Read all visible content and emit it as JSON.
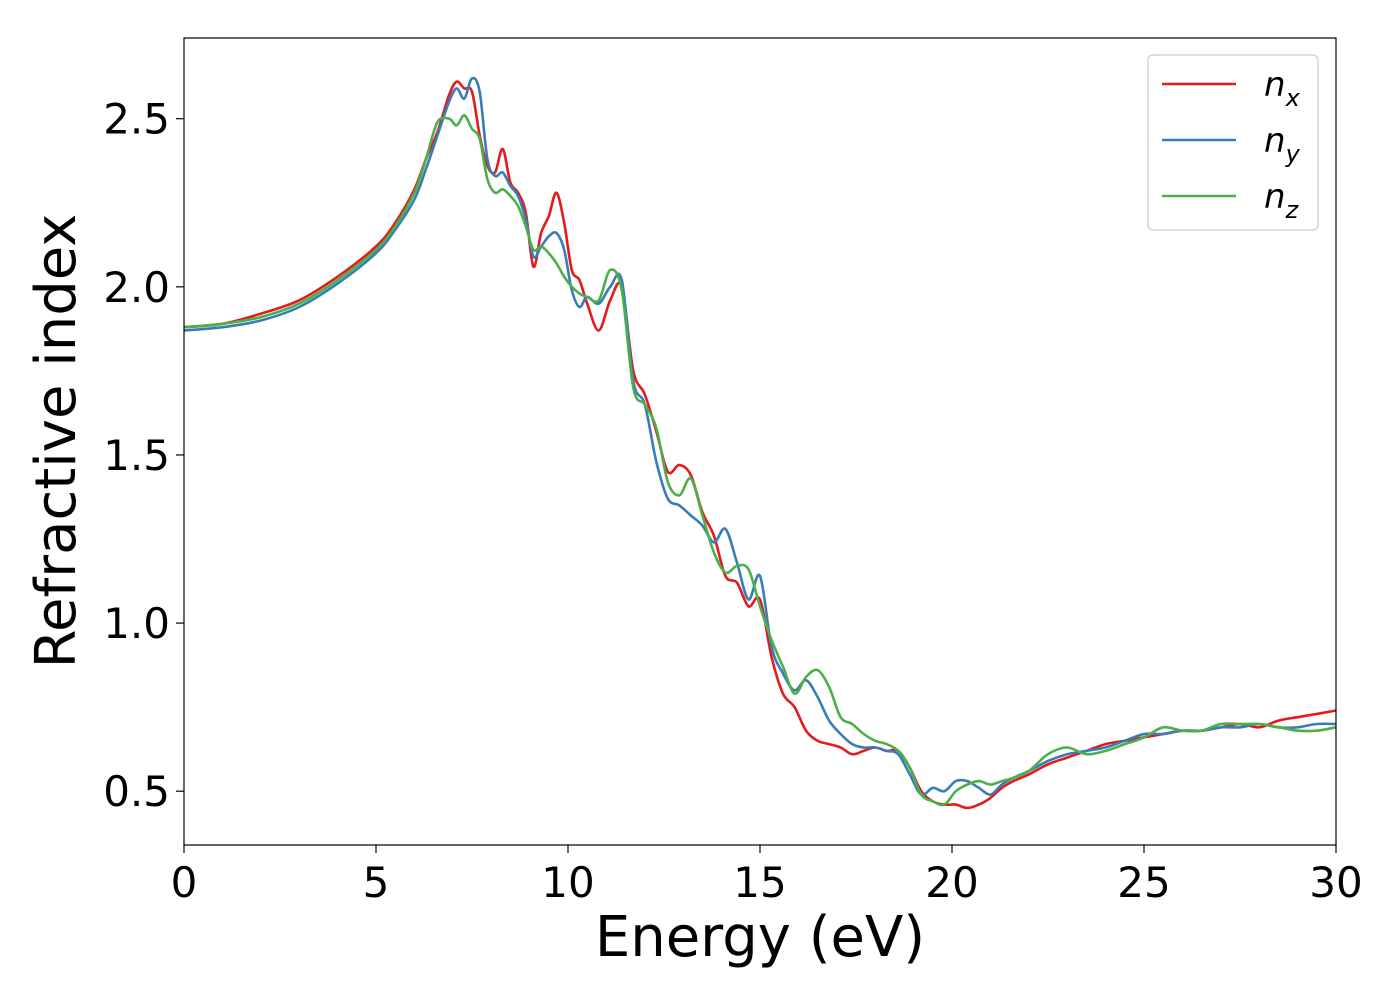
{
  "chart_data": {
    "type": "line",
    "title": "",
    "xlabel": "Energy (eV)",
    "ylabel": "Refractive index",
    "xlim": [
      0,
      30
    ],
    "ylim": [
      0.34,
      2.74
    ],
    "xticks": [
      0,
      5,
      10,
      15,
      20,
      25,
      30
    ],
    "xtick_labels": [
      "0",
      "5",
      "10",
      "15",
      "20",
      "25",
      "30"
    ],
    "yticks": [
      0.5,
      1.0,
      1.5,
      2.0,
      2.5
    ],
    "ytick_labels": [
      "0.5",
      "1.0",
      "1.5",
      "2.0",
      "2.5"
    ],
    "grid": false,
    "legend_position": "top-right",
    "series": [
      {
        "name": "n_x",
        "label_base": "n",
        "label_sub": "x",
        "color": "#e41a1c",
        "x": [
          0,
          1,
          2,
          3,
          4,
          5,
          5.5,
          6,
          6.3,
          6.6,
          6.9,
          7.1,
          7.3,
          7.5,
          7.7,
          7.9,
          8.1,
          8.3,
          8.5,
          8.7,
          8.9,
          9.1,
          9.3,
          9.5,
          9.7,
          9.9,
          10.1,
          10.3,
          10.5,
          10.8,
          11.1,
          11.4,
          11.7,
          12.0,
          12.3,
          12.6,
          12.9,
          13.2,
          13.5,
          13.8,
          14.1,
          14.4,
          14.7,
          15.0,
          15.3,
          15.6,
          15.9,
          16.2,
          16.5,
          16.8,
          17.1,
          17.4,
          17.7,
          18.0,
          18.3,
          18.6,
          18.9,
          19.2,
          19.5,
          19.8,
          20.1,
          20.4,
          20.7,
          21.0,
          21.3,
          21.6,
          22.0,
          22.5,
          23.0,
          23.5,
          24.0,
          24.5,
          25.0,
          25.5,
          26.0,
          26.5,
          27.0,
          27.5,
          28.0,
          28.5,
          29.0,
          29.5,
          30.0
        ],
        "y": [
          1.88,
          1.89,
          1.92,
          1.96,
          2.03,
          2.12,
          2.19,
          2.29,
          2.38,
          2.46,
          2.57,
          2.61,
          2.59,
          2.58,
          2.45,
          2.36,
          2.34,
          2.41,
          2.31,
          2.28,
          2.22,
          2.06,
          2.16,
          2.21,
          2.28,
          2.19,
          2.05,
          2.02,
          1.95,
          1.87,
          1.96,
          2.0,
          1.75,
          1.68,
          1.57,
          1.45,
          1.47,
          1.44,
          1.33,
          1.26,
          1.14,
          1.12,
          1.05,
          1.07,
          0.9,
          0.79,
          0.75,
          0.68,
          0.65,
          0.64,
          0.63,
          0.61,
          0.62,
          0.63,
          0.62,
          0.62,
          0.57,
          0.5,
          0.47,
          0.46,
          0.46,
          0.45,
          0.46,
          0.48,
          0.51,
          0.53,
          0.55,
          0.58,
          0.6,
          0.62,
          0.64,
          0.65,
          0.66,
          0.67,
          0.68,
          0.68,
          0.69,
          0.7,
          0.69,
          0.71,
          0.72,
          0.73,
          0.74
        ]
      },
      {
        "name": "n_y",
        "label_base": "n",
        "label_sub": "y",
        "color": "#377eb8",
        "x": [
          0,
          1,
          2,
          3,
          4,
          5,
          5.5,
          6,
          6.3,
          6.6,
          6.9,
          7.1,
          7.3,
          7.5,
          7.7,
          7.9,
          8.1,
          8.3,
          8.5,
          8.7,
          8.9,
          9.1,
          9.3,
          9.5,
          9.7,
          9.9,
          10.1,
          10.3,
          10.5,
          10.8,
          11.1,
          11.4,
          11.7,
          12.0,
          12.3,
          12.6,
          12.9,
          13.2,
          13.5,
          13.8,
          14.1,
          14.4,
          14.7,
          15.0,
          15.3,
          15.6,
          15.9,
          16.2,
          16.5,
          16.8,
          17.1,
          17.4,
          17.7,
          18.0,
          18.3,
          18.6,
          18.9,
          19.2,
          19.5,
          19.8,
          20.1,
          20.4,
          20.7,
          21.0,
          21.3,
          21.6,
          22.0,
          22.5,
          23.0,
          23.5,
          24.0,
          24.5,
          25.0,
          25.5,
          26.0,
          26.5,
          27.0,
          27.5,
          28.0,
          28.5,
          29.0,
          29.5,
          30.0
        ],
        "y": [
          1.87,
          1.88,
          1.9,
          1.94,
          2.01,
          2.1,
          2.17,
          2.26,
          2.35,
          2.45,
          2.55,
          2.59,
          2.56,
          2.62,
          2.58,
          2.38,
          2.33,
          2.34,
          2.3,
          2.27,
          2.2,
          2.09,
          2.12,
          2.15,
          2.16,
          2.11,
          1.99,
          1.94,
          1.97,
          1.95,
          2.0,
          2.02,
          1.72,
          1.65,
          1.48,
          1.37,
          1.35,
          1.32,
          1.29,
          1.24,
          1.28,
          1.18,
          1.07,
          1.14,
          0.93,
          0.85,
          0.8,
          0.83,
          0.78,
          0.71,
          0.67,
          0.64,
          0.63,
          0.63,
          0.62,
          0.61,
          0.55,
          0.49,
          0.51,
          0.5,
          0.53,
          0.53,
          0.51,
          0.49,
          0.52,
          0.54,
          0.56,
          0.59,
          0.61,
          0.62,
          0.63,
          0.65,
          0.67,
          0.67,
          0.68,
          0.68,
          0.69,
          0.69,
          0.7,
          0.69,
          0.69,
          0.7,
          0.7
        ]
      },
      {
        "name": "n_z",
        "label_base": "n",
        "label_sub": "z",
        "color": "#4daf4a",
        "x": [
          0,
          1,
          2,
          3,
          4,
          5,
          5.5,
          6,
          6.3,
          6.6,
          6.9,
          7.1,
          7.3,
          7.5,
          7.7,
          7.9,
          8.1,
          8.3,
          8.5,
          8.7,
          8.9,
          9.1,
          9.3,
          9.5,
          9.7,
          9.9,
          10.1,
          10.3,
          10.5,
          10.8,
          11.1,
          11.4,
          11.7,
          12.0,
          12.3,
          12.6,
          12.9,
          13.2,
          13.5,
          13.8,
          14.1,
          14.4,
          14.7,
          15.0,
          15.3,
          15.6,
          15.9,
          16.2,
          16.5,
          16.8,
          17.1,
          17.4,
          17.7,
          18.0,
          18.3,
          18.6,
          18.9,
          19.2,
          19.5,
          19.8,
          20.1,
          20.4,
          20.7,
          21.0,
          21.3,
          21.6,
          22.0,
          22.5,
          23.0,
          23.5,
          24.0,
          24.5,
          25.0,
          25.5,
          26.0,
          26.5,
          27.0,
          27.5,
          28.0,
          28.5,
          29.0,
          29.5,
          30.0
        ],
        "y": [
          1.88,
          1.89,
          1.91,
          1.95,
          2.02,
          2.11,
          2.18,
          2.28,
          2.38,
          2.49,
          2.5,
          2.48,
          2.51,
          2.47,
          2.44,
          2.32,
          2.28,
          2.29,
          2.27,
          2.24,
          2.18,
          2.11,
          2.12,
          2.1,
          2.07,
          2.03,
          2.0,
          1.98,
          1.97,
          1.96,
          2.05,
          1.99,
          1.7,
          1.65,
          1.58,
          1.42,
          1.38,
          1.43,
          1.32,
          1.21,
          1.15,
          1.17,
          1.16,
          1.05,
          0.95,
          0.87,
          0.79,
          0.84,
          0.86,
          0.81,
          0.72,
          0.7,
          0.67,
          0.65,
          0.64,
          0.62,
          0.57,
          0.49,
          0.47,
          0.46,
          0.5,
          0.52,
          0.53,
          0.52,
          0.53,
          0.54,
          0.56,
          0.61,
          0.63,
          0.61,
          0.62,
          0.64,
          0.66,
          0.69,
          0.68,
          0.68,
          0.7,
          0.7,
          0.7,
          0.69,
          0.68,
          0.68,
          0.69
        ]
      }
    ]
  }
}
